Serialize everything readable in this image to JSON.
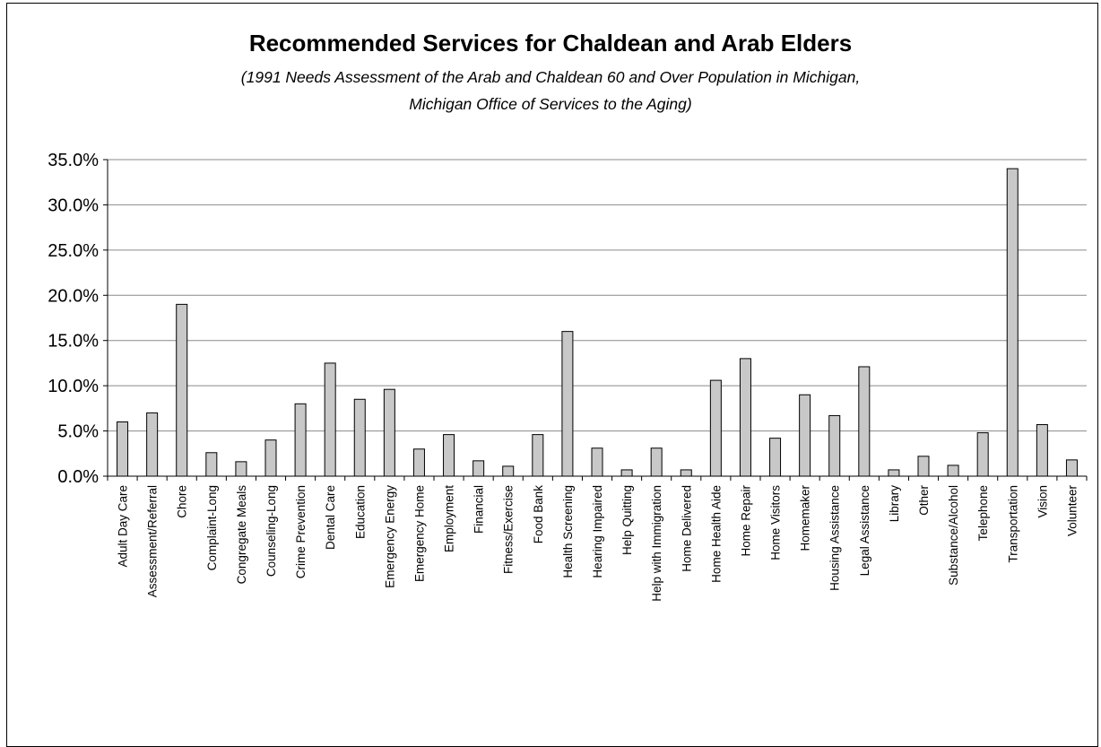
{
  "chart_data": {
    "type": "bar",
    "title": "Recommended Services for Chaldean and Arab Elders",
    "subtitle_lines": [
      "(1991 Needs Assessment of the Arab  and Chaldean 60 and Over Population in Michigan,",
      "Michigan Office of Services to the Aging)"
    ],
    "xlabel": "",
    "ylabel": "",
    "ylim": [
      0,
      35
    ],
    "yticks": [
      "0.0%",
      "5.0%",
      "10.0%",
      "15.0%",
      "20.0%",
      "25.0%",
      "30.0%",
      "35.0%"
    ],
    "grid": true,
    "legend": "none",
    "bar_color": "#c8c8c8",
    "categories": [
      "Adult Day Care",
      "Assessment/Referral",
      "Chore",
      "Complaint-Long",
      "Congregate Meals",
      "Counseling-Long",
      "Crime Prevention",
      "Dental Care",
      "Education",
      "Emergency Energy",
      "Emergency Home",
      "Employment",
      "Financial",
      "Fitness/Exercise",
      "Food Bank",
      "Health Screening",
      "Hearing Impaired",
      "Help Quitting",
      "Help with Immigration",
      "Home Delivered",
      "Home Health Aide",
      "Home Repair",
      "Home Visitors",
      "Homemaker",
      "Housing Assistance",
      "Legal Assistance",
      "Library",
      "Other",
      "Substance/Alcohol",
      "Telephone",
      "Transportation",
      "Vision",
      "Volunteer"
    ],
    "values": [
      6.0,
      7.0,
      19.0,
      2.6,
      1.6,
      4.0,
      8.0,
      12.5,
      8.5,
      9.6,
      3.0,
      4.6,
      1.7,
      1.1,
      4.6,
      16.0,
      3.1,
      0.7,
      3.1,
      0.7,
      10.6,
      13.0,
      4.2,
      9.0,
      6.7,
      12.1,
      0.7,
      2.2,
      1.2,
      4.8,
      34.0,
      5.7,
      1.8
    ]
  }
}
